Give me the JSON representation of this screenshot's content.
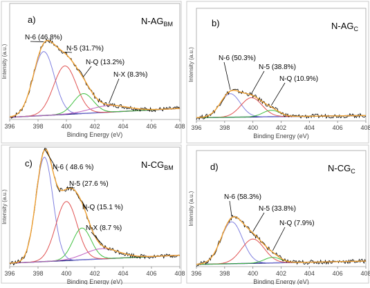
{
  "figure": {
    "axis_x_label": "Binding Energy (eV)",
    "axis_y_label": "Intensity (a.u.)"
  },
  "chart_data": [
    {
      "type": "line",
      "panel_letter": "a)",
      "title_main": "N-AG",
      "title_sub": "BM",
      "xlabel": "Binding Energy (eV)",
      "ylabel": "Intensity (a.u.)",
      "xlim": [
        396,
        408
      ],
      "xticks": [
        396,
        398,
        400,
        402,
        404,
        406,
        408
      ],
      "grid": false,
      "peaks": [
        {
          "label": "N-6 (46.8%)",
          "center": 398.4,
          "amplitude": 0.58,
          "width": 0.75,
          "color": "#8080e0"
        },
        {
          "label": "N-5 (31.7%)",
          "center": 399.9,
          "amplitude": 0.44,
          "width": 0.8,
          "color": "#e05050"
        },
        {
          "label": "N-Q (13.2%)",
          "center": 401.2,
          "amplitude": 0.18,
          "width": 0.7,
          "color": "#40c040"
        },
        {
          "label": "N-X (8.3%)",
          "center": 403.0,
          "amplitude": 0.06,
          "width": 1.3,
          "color": "#c060c0"
        }
      ],
      "background": {
        "start": 0.02,
        "end": 0.1,
        "color": "#1a1a80"
      }
    },
    {
      "type": "line",
      "panel_letter": "b)",
      "title_main": "N-AG",
      "title_sub": "C",
      "xlabel": "Binding Energy (eV)",
      "ylabel": "Intensity (a.u.)",
      "xlim": [
        396,
        408
      ],
      "xticks": [
        396,
        398,
        400,
        402,
        404,
        406,
        408
      ],
      "grid": false,
      "peaks": [
        {
          "label": "N-6 (50.3%)",
          "center": 398.4,
          "amplitude": 0.22,
          "width": 0.7,
          "color": "#8080e0"
        },
        {
          "label": "N-5 (38.8%)",
          "center": 399.9,
          "amplitude": 0.18,
          "width": 0.75,
          "color": "#e05050"
        },
        {
          "label": "N-Q (10.9%)",
          "center": 401.3,
          "amplitude": 0.06,
          "width": 0.6,
          "color": "#40c040"
        }
      ],
      "background": {
        "start": 0.03,
        "end": 0.05,
        "color": "#1a1a80"
      }
    },
    {
      "type": "line",
      "panel_letter": "c)",
      "title_main": "N-CG",
      "title_sub": "BM",
      "xlabel": "Binding Energy (eV)",
      "ylabel": "Intensity (a.u.)",
      "xlim": [
        396,
        408
      ],
      "xticks": [
        396,
        398,
        400,
        402,
        404,
        406,
        408
      ],
      "grid": false,
      "peaks": [
        {
          "label": "N-6 ( 48.6 %)",
          "center": 398.45,
          "amplitude": 0.92,
          "width": 0.6,
          "color": "#8080e0"
        },
        {
          "label": "N-5 (27.6 %)",
          "center": 400.0,
          "amplitude": 0.52,
          "width": 0.75,
          "color": "#e05050"
        },
        {
          "label": "N-Q (15.1 %)",
          "center": 401.1,
          "amplitude": 0.28,
          "width": 0.65,
          "color": "#40c040"
        },
        {
          "label": "N-X (8.7 %)",
          "center": 402.5,
          "amplitude": 0.09,
          "width": 1.2,
          "color": "#c060c0"
        }
      ],
      "background": {
        "start": 0.03,
        "end": 0.1,
        "color": "#1a1a80"
      }
    },
    {
      "type": "line",
      "panel_letter": "d)",
      "title_main": "N-CG",
      "title_sub": "C",
      "xlabel": "Binding Energy (eV)",
      "ylabel": "Intensity (a.u.)",
      "xlim": [
        396,
        408
      ],
      "xticks": [
        396,
        398,
        400,
        402,
        404,
        406,
        408
      ],
      "grid": false,
      "peaks": [
        {
          "label": "N-6 (58.3%)",
          "center": 398.5,
          "amplitude": 0.38,
          "width": 0.75,
          "color": "#8080e0"
        },
        {
          "label": "N-5 (33.8%)",
          "center": 400.0,
          "amplitude": 0.22,
          "width": 0.8,
          "color": "#e05050"
        },
        {
          "label": "N-Q (7.9%)",
          "center": 401.4,
          "amplitude": 0.05,
          "width": 0.6,
          "color": "#40c040"
        }
      ],
      "background": {
        "start": 0.02,
        "end": 0.05,
        "color": "#1a1a80"
      }
    }
  ]
}
